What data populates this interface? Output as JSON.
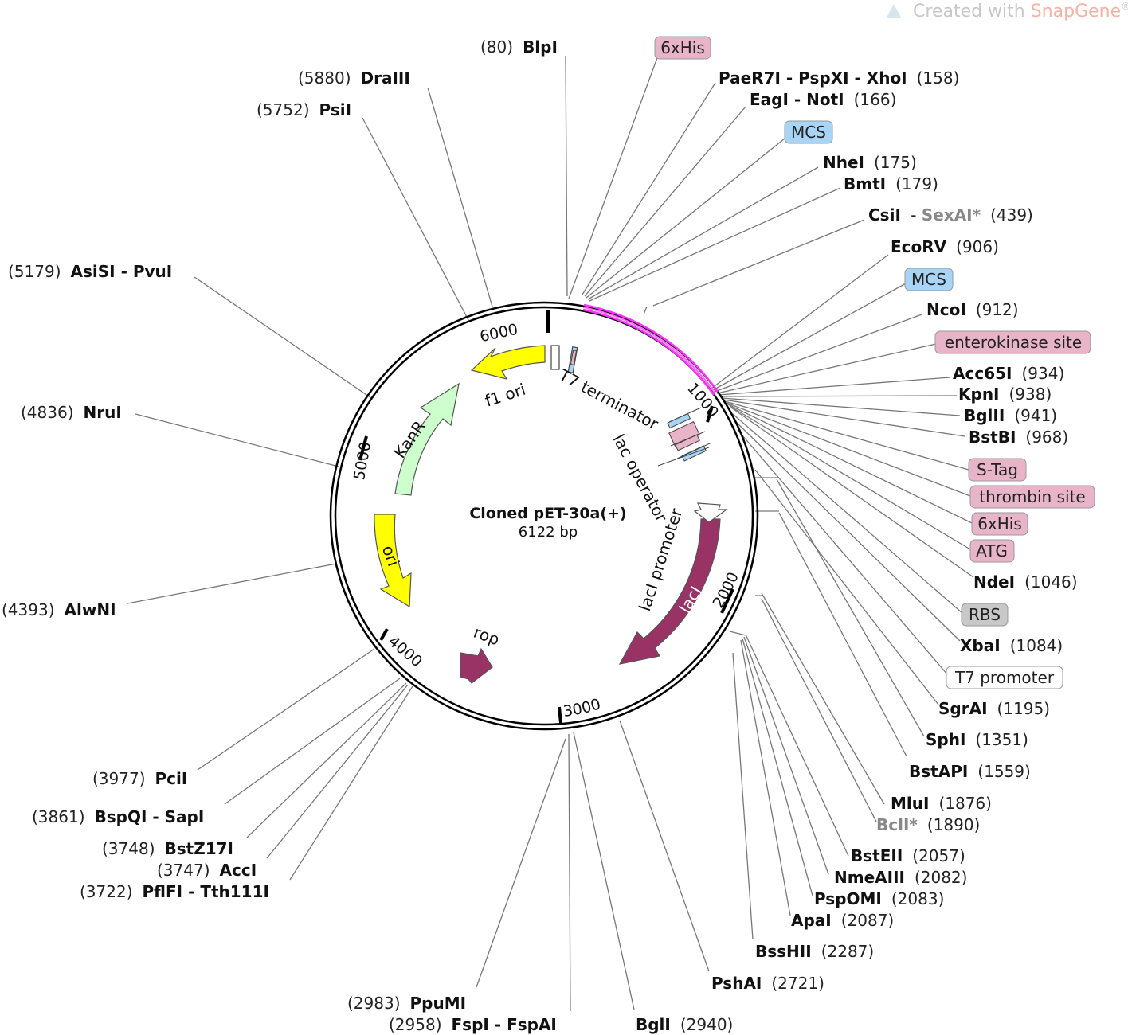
{
  "watermark": {
    "prefix": "Created with ",
    "brand": "SnapGene",
    "reg": "®"
  },
  "plasmid": {
    "name": "Cloned pET-30a(+)",
    "size": "6122 bp"
  },
  "ticks": [
    "1000",
    "2000",
    "3000",
    "4000",
    "5000",
    "6000"
  ],
  "feature_labels": {
    "f1ori": "f1 ori",
    "kanr": "KanR",
    "ori": "ori",
    "rop": "rop",
    "laci": "lacI",
    "laci_promoter": "lacI promoter",
    "t7_terminator": "T7 terminator",
    "lac_operator": "lac operator"
  },
  "sites": [
    {
      "name": "BlpI",
      "pos": "(80)",
      "side": "left"
    },
    {
      "name": "DraIII",
      "pos": "(5880)",
      "side": "left"
    },
    {
      "name": "PsiI",
      "pos": "(5752)",
      "side": "left"
    },
    {
      "name": "AsiSI - PvuI",
      "pos": "(5179)",
      "side": "left"
    },
    {
      "name": "NruI",
      "pos": "(4836)",
      "side": "left"
    },
    {
      "name": "AlwNI",
      "pos": "(4393)",
      "side": "left"
    },
    {
      "name": "PciI",
      "pos": "(3977)",
      "side": "left"
    },
    {
      "name": "BspQI - SapI",
      "pos": "(3861)",
      "side": "left"
    },
    {
      "name": "BstZ17I",
      "pos": "(3748)",
      "side": "left"
    },
    {
      "name": "AccI",
      "pos": "(3747)",
      "side": "left"
    },
    {
      "name": "PflFI - Tth111I",
      "pos": "(3722)",
      "side": "left"
    },
    {
      "name": "PpuMI",
      "pos": "(2983)",
      "side": "left"
    },
    {
      "name": "FspI - FspAI",
      "pos": "(2958)",
      "side": "left"
    },
    {
      "name": "BglI",
      "pos": "(2940)",
      "side": "left"
    },
    {
      "name": "PaeR7I - PspXI - XhoI",
      "pos": "(158)",
      "side": "right"
    },
    {
      "name": "EagI - NotI",
      "pos": "(166)",
      "side": "right"
    },
    {
      "name": "NheI",
      "pos": "(175)",
      "side": "right"
    },
    {
      "name": "BmtI",
      "pos": "(179)",
      "side": "right"
    },
    {
      "name": "CsiI",
      "name2": "SexAI*",
      "pos": "(439)",
      "side": "right"
    },
    {
      "name": "EcoRV",
      "pos": "(906)",
      "side": "right"
    },
    {
      "name": "NcoI",
      "pos": "(912)",
      "side": "right"
    },
    {
      "name": "Acc65I",
      "pos": "(934)",
      "side": "right"
    },
    {
      "name": "KpnI",
      "pos": "(938)",
      "side": "right"
    },
    {
      "name": "BglII",
      "pos": "(941)",
      "side": "right"
    },
    {
      "name": "BstBI",
      "pos": "(968)",
      "side": "right"
    },
    {
      "name": "NdeI",
      "pos": "(1046)",
      "side": "right"
    },
    {
      "name": "XbaI",
      "pos": "(1084)",
      "side": "right"
    },
    {
      "name": "SgrAI",
      "pos": "(1195)",
      "side": "right"
    },
    {
      "name": "SphI",
      "pos": "(1351)",
      "side": "right"
    },
    {
      "name": "BstAPI",
      "pos": "(1559)",
      "side": "right"
    },
    {
      "name": "MluI",
      "pos": "(1876)",
      "side": "right"
    },
    {
      "name": "BclI*",
      "pos": "(1890)",
      "side": "right",
      "gray": true
    },
    {
      "name": "BstEII",
      "pos": "(2057)",
      "side": "right"
    },
    {
      "name": "NmeAIII",
      "pos": "(2082)",
      "side": "right"
    },
    {
      "name": "PspOMI",
      "pos": "(2083)",
      "side": "right"
    },
    {
      "name": "ApaI",
      "pos": "(2087)",
      "side": "right"
    },
    {
      "name": "BssHII",
      "pos": "(2287)",
      "side": "right"
    },
    {
      "name": "PshAI",
      "pos": "(2721)",
      "side": "right"
    }
  ],
  "boxes": [
    {
      "text": "6xHis",
      "color": "#e8b4c8"
    },
    {
      "text": "MCS",
      "color": "#a8d4f5"
    },
    {
      "text": "MCS",
      "color": "#a8d4f5"
    },
    {
      "text": "enterokinase site",
      "color": "#e8b4c8"
    },
    {
      "text": "S-Tag",
      "color": "#e8b4c8"
    },
    {
      "text": "thrombin site",
      "color": "#e8b4c8"
    },
    {
      "text": "6xHis",
      "color": "#e8b4c8"
    },
    {
      "text": "ATG",
      "color": "#e8b4c8"
    },
    {
      "text": "RBS",
      "color": "#c8c8c8"
    },
    {
      "text": "T7 promoter",
      "color": "#ffffff"
    }
  ],
  "colors": {
    "magenta": "#ff33ff",
    "yellow": "#ffff00",
    "green": "#ccffcc",
    "maroon": "#993366"
  }
}
